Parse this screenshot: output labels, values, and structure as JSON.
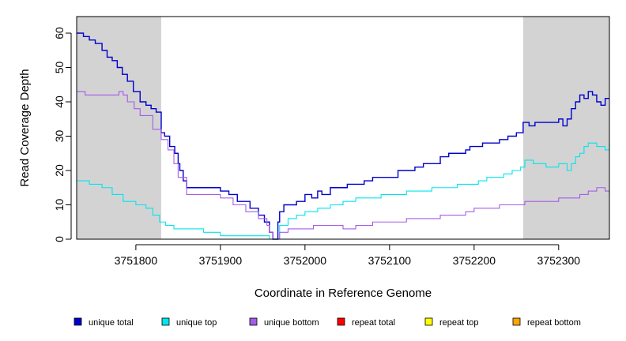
{
  "chart_data": {
    "type": "line",
    "title": "",
    "xlabel": "Coordinate in Reference Genome",
    "ylabel": "Read Coverage Depth",
    "xlim": [
      3751730,
      3752360
    ],
    "ylim": [
      0,
      60
    ],
    "x_ticks": [
      3751800,
      3751900,
      3752000,
      3752100,
      3752200,
      3752300
    ],
    "x_tick_labels": [
      "3751800",
      "3751900",
      "3752000",
      "3752100",
      "3752200",
      "3752300"
    ],
    "y_ticks": [
      0,
      10,
      20,
      30,
      40,
      50,
      60
    ],
    "y_tick_labels": [
      "0",
      "10",
      "20",
      "30",
      "40",
      "50",
      "60"
    ],
    "shaded_regions": [
      [
        3751730,
        3751830
      ],
      [
        3752258,
        3752360
      ]
    ],
    "series": [
      {
        "name": "unique total",
        "color": "#0000cd",
        "x": [
          3751730,
          3751738,
          3751745,
          3751752,
          3751760,
          3751766,
          3751772,
          3751778,
          3751784,
          3751790,
          3751797,
          3751805,
          3751812,
          3751818,
          3751824,
          3751830,
          3751834,
          3751840,
          3751846,
          3751850,
          3751852,
          3751856,
          3751860,
          3751880,
          3751900,
          3751910,
          3751920,
          3751935,
          3751945,
          3751952,
          3751958,
          3751962,
          3751965,
          3751968,
          3751970,
          3751975,
          3751990,
          3752000,
          3752008,
          3752015,
          3752020,
          3752030,
          3752040,
          3752050,
          3752060,
          3752070,
          3752080,
          3752090,
          3752100,
          3752110,
          3752120,
          3752130,
          3752140,
          3752150,
          3752160,
          3752170,
          3752180,
          3752190,
          3752195,
          3752200,
          3752210,
          3752220,
          3752230,
          3752240,
          3752250,
          3752258,
          3752265,
          3752272,
          3752280,
          3752290,
          3752300,
          3752305,
          3752310,
          3752315,
          3752320,
          3752325,
          3752330,
          3752335,
          3752340,
          3752345,
          3752350,
          3752355,
          3752360
        ],
        "y": [
          60,
          59,
          58,
          57,
          55,
          53,
          52,
          50,
          48,
          46,
          43,
          40,
          39,
          38,
          37,
          31,
          30,
          27,
          25,
          22,
          20,
          17,
          15,
          15,
          14,
          13,
          11,
          9,
          7,
          5,
          2,
          0,
          0,
          5,
          8,
          10,
          11,
          13,
          12,
          14,
          13,
          15,
          15,
          16,
          16,
          17,
          18,
          18,
          18,
          20,
          20,
          21,
          22,
          22,
          24,
          25,
          25,
          26,
          27,
          27,
          28,
          28,
          29,
          30,
          31,
          34,
          33,
          34,
          34,
          34,
          35,
          33,
          35,
          38,
          40,
          42,
          41,
          43,
          42,
          40,
          39,
          41,
          41
        ]
      },
      {
        "name": "unique top",
        "color": "#00e5ee",
        "x": [
          3751730,
          3751745,
          3751760,
          3751772,
          3751785,
          3751800,
          3751812,
          3751820,
          3751828,
          3751835,
          3751845,
          3751860,
          3751880,
          3751900,
          3751920,
          3751945,
          3751958,
          3751962,
          3751965,
          3751970,
          3751980,
          3751990,
          3752000,
          3752015,
          3752030,
          3752045,
          3752060,
          3752075,
          3752090,
          3752100,
          3752120,
          3752135,
          3752150,
          3752165,
          3752180,
          3752195,
          3752205,
          3752215,
          3752225,
          3752235,
          3752245,
          3752255,
          3752260,
          3752270,
          3752285,
          3752300,
          3752310,
          3752315,
          3752320,
          3752325,
          3752330,
          3752335,
          3752345,
          3752355,
          3752360
        ],
        "y": [
          17,
          16,
          15,
          13,
          11,
          10,
          9,
          7,
          5,
          4,
          3,
          3,
          2,
          1,
          1,
          1,
          0,
          0,
          0,
          4,
          6,
          7,
          8,
          9,
          10,
          11,
          12,
          12,
          13,
          13,
          14,
          14,
          15,
          15,
          16,
          16,
          17,
          18,
          18,
          19,
          20,
          21,
          23,
          22,
          21,
          22,
          20,
          22,
          24,
          25,
          27,
          28,
          27,
          26,
          28
        ]
      },
      {
        "name": "unique bottom",
        "color": "#a55ce6",
        "x": [
          3751730,
          3751740,
          3751755,
          3751770,
          3751780,
          3751785,
          3751790,
          3751798,
          3751805,
          3751820,
          3751830,
          3751838,
          3751845,
          3751850,
          3751860,
          3751880,
          3751900,
          3751915,
          3751930,
          3751945,
          3751955,
          3751958,
          3751962,
          3751965,
          3751970,
          3751980,
          3751995,
          3752010,
          3752025,
          3752045,
          3752060,
          3752080,
          3752100,
          3752120,
          3752140,
          3752160,
          3752175,
          3752190,
          3752200,
          3752215,
          3752230,
          3752250,
          3752260,
          3752275,
          3752285,
          3752300,
          3752315,
          3752325,
          3752335,
          3752345,
          3752355,
          3752360
        ],
        "y": [
          43,
          42,
          42,
          42,
          43,
          42,
          40,
          38,
          36,
          32,
          29,
          26,
          22,
          18,
          13,
          13,
          12,
          10,
          8,
          6,
          4,
          2,
          0,
          0,
          2,
          3,
          3,
          4,
          4,
          3,
          4,
          5,
          5,
          6,
          6,
          7,
          7,
          8,
          9,
          9,
          10,
          10,
          11,
          11,
          11,
          12,
          12,
          13,
          14,
          15,
          14,
          13
        ]
      },
      {
        "name": "repeat total",
        "color": "#ff0000",
        "x": [
          3751730,
          3752360
        ],
        "y": [
          0,
          0
        ]
      },
      {
        "name": "repeat top",
        "color": "#ffff00",
        "x": [
          3751730,
          3752360
        ],
        "y": [
          0,
          0
        ]
      },
      {
        "name": "repeat bottom",
        "color": "#ffa500",
        "x": [
          3751730,
          3752360
        ],
        "y": [
          0,
          0
        ]
      }
    ],
    "legend": {
      "placement": "bottom",
      "entries": [
        "unique total",
        "unique top",
        "unique bottom",
        "repeat total",
        "repeat top",
        "repeat bottom"
      ]
    }
  }
}
